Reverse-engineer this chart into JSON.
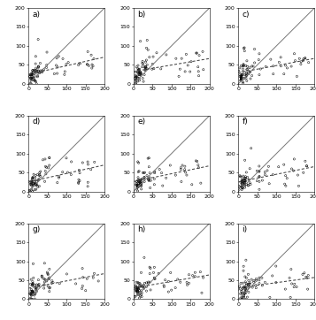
{
  "n_rows": 3,
  "n_cols": 3,
  "labels": [
    "a)",
    "b)",
    "c)",
    "d)",
    "e)",
    "f)",
    "g)",
    "h)",
    "i)"
  ],
  "xlim": [
    0,
    200
  ],
  "ylim": [
    0,
    200
  ],
  "xticks": [
    0,
    50,
    100,
    150,
    200
  ],
  "yticks": [
    0,
    50,
    100,
    150,
    200
  ],
  "tick_fontsize": 4.5,
  "label_fontsize": 6.5,
  "bg_color": "#ffffff",
  "scatter_size": 2.5,
  "scatter_facecolor": "none",
  "scatter_edgecolor": "black",
  "scatter_linewidth": 0.35,
  "diag_color": "#777777",
  "diag_linewidth": 0.7,
  "trend_color": "#444444",
  "trend_linewidth": 0.75,
  "seeds": [
    10,
    20,
    30,
    40,
    50,
    60,
    70,
    80,
    90
  ]
}
